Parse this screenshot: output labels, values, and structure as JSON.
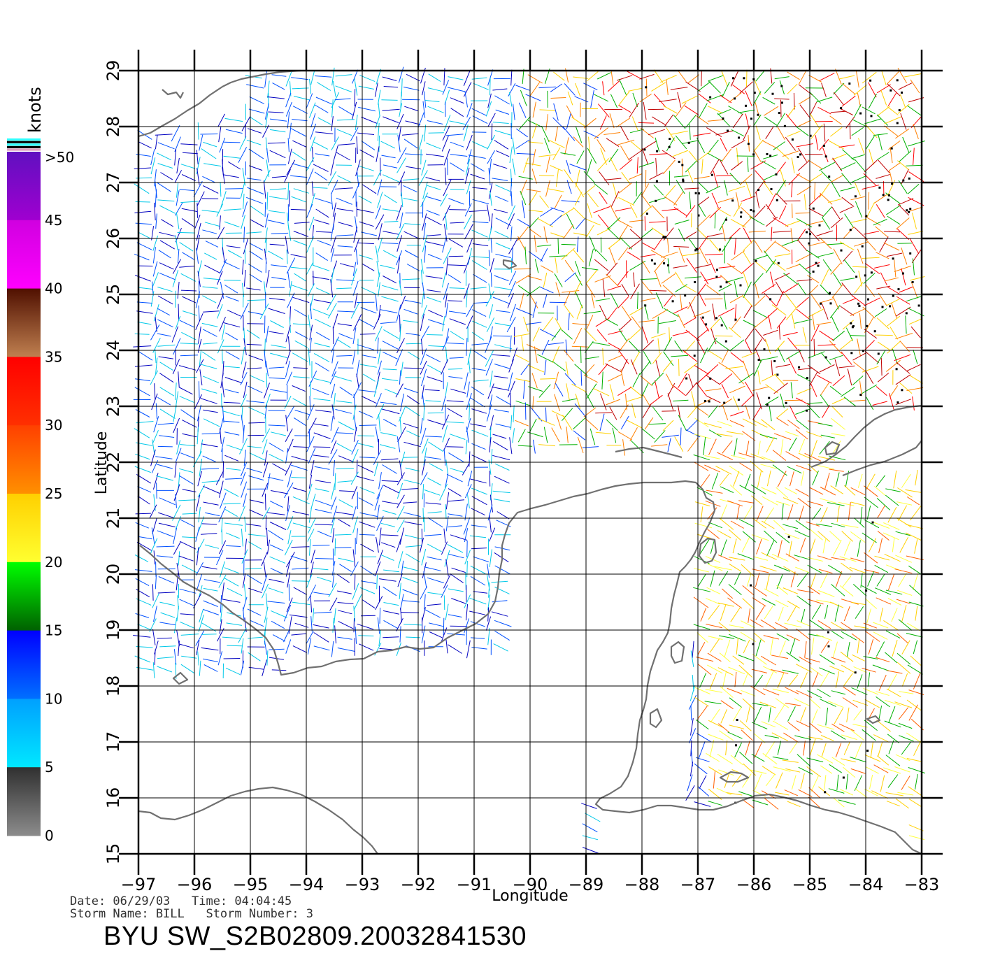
{
  "map": {
    "lon_range": [
      -97,
      -83
    ],
    "lat_range": [
      15,
      29
    ],
    "lon_ticks": [
      "-97",
      "-96",
      "-95",
      "-94",
      "-93",
      "-92",
      "-91",
      "-90",
      "-89",
      "-88",
      "-87",
      "-86",
      "-85",
      "-84",
      "-83"
    ],
    "lat_ticks": [
      "15",
      "16",
      "17",
      "18",
      "19",
      "20",
      "21",
      "22",
      "23",
      "24",
      "25",
      "26",
      "27",
      "28",
      "29"
    ],
    "xlabel": "Longitude",
    "ylabel": "Latitude",
    "grid": true,
    "land_color": "#ffffff",
    "coast_color": "#707070"
  },
  "colorbar": {
    "units": "knots",
    "labels": [
      "0",
      "5",
      "10",
      "15",
      "20",
      "25",
      "30",
      "35",
      "40",
      "45",
      ">50"
    ],
    "segments": [
      {
        "from": 0,
        "to": 5,
        "top": "#303030",
        "bottom": "#8c8c8c"
      },
      {
        "from": 5,
        "to": 10,
        "top": "#00a0ff",
        "bottom": "#00e8ff"
      },
      {
        "from": 10,
        "to": 15,
        "top": "#0000ff",
        "bottom": "#0070ff"
      },
      {
        "from": 15,
        "to": 20,
        "top": "#00ff00",
        "bottom": "#006000"
      },
      {
        "from": 20,
        "to": 25,
        "top": "#ffd000",
        "bottom": "#ffff30"
      },
      {
        "from": 25,
        "to": 30,
        "top": "#ff4000",
        "bottom": "#ff9000"
      },
      {
        "from": 30,
        "to": 35,
        "top": "#ff0000",
        "bottom": "#ff3000"
      },
      {
        "from": 35,
        "to": 40,
        "top": "#501000",
        "bottom": "#c08050"
      },
      {
        "from": 40,
        "to": 45,
        "top": "#d000e0",
        "bottom": "#ff00ff"
      },
      {
        "from": 45,
        "to": 50,
        "top": "#6010c0",
        "bottom": "#a000d0"
      }
    ],
    "overflow_stripes": [
      "#30ffff",
      "#000000",
      "#30ffff",
      "#000000",
      "#e0a0c0"
    ]
  },
  "metadata": {
    "line1": "Date: 06/29/03   Time: 04:04:45",
    "line2": "Storm Name: BILL   Storm Number: 3",
    "product": "BYU SW_S2B02809.20032841530"
  },
  "wind_regions": {
    "calm_west_gulf": {
      "speed_knots": [
        5,
        15
      ],
      "colors": [
        "#00c8e8",
        "#0050ff",
        "#0000c0"
      ]
    },
    "east_gulf_storm": {
      "speed_knots": [
        20,
        40
      ],
      "colors": [
        "#ff0000",
        "#ff8000",
        "#ffd000",
        "#c00000",
        "#00b000"
      ]
    },
    "caribbean": {
      "speed_knots": [
        15,
        30
      ],
      "colors": [
        "#ffd000",
        "#00b000",
        "#ff6000",
        "#ffff40"
      ]
    }
  }
}
